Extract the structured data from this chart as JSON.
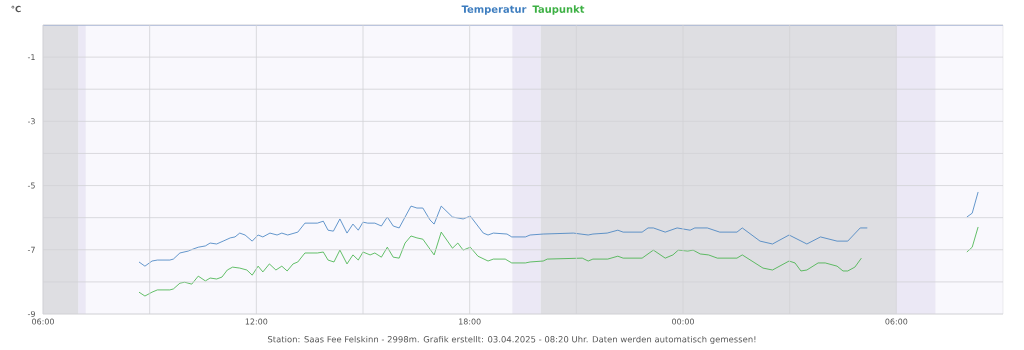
{
  "chart_data": {
    "type": "line",
    "ylabel": "°C",
    "annotations": [
      "Station: Saas Fee Felskinn - 2998m. Grafik erstellt: 03.04.2025 - 08:20 Uhr. Daten werden automatisch gemessen!"
    ],
    "xlim": [
      "2025-04-02T06:00",
      "2025-04-03T09:00"
    ],
    "ylim": [
      -9,
      0
    ],
    "xticks": [
      {
        "value": "2025-04-02T06:00",
        "label": "06:00"
      },
      {
        "value": "2025-04-02T09:00",
        "label": null
      },
      {
        "value": "2025-04-02T12:00",
        "label": "12:00"
      },
      {
        "value": "2025-04-02T15:00",
        "label": null
      },
      {
        "value": "2025-04-02T18:00",
        "label": "18:00"
      },
      {
        "value": "2025-04-02T21:00",
        "label": null
      },
      {
        "value": "2025-04-03T00:00",
        "label": "00:00"
      },
      {
        "value": "2025-04-03T03:00",
        "label": null
      },
      {
        "value": "2025-04-03T06:00",
        "label": "06:00"
      }
    ],
    "yticks": [
      -9,
      {
        "value": -8,
        "label": null
      },
      -7,
      {
        "value": -6,
        "label": null
      },
      -5,
      {
        "value": -4,
        "label": null
      },
      -3,
      {
        "value": -2,
        "label": null
      },
      -1,
      {
        "value": 0,
        "label": null
      }
    ],
    "grid": true,
    "legend": "top",
    "marker": "none",
    "line_style": "solid",
    "ref_lines": [
      {
        "axis": "y",
        "value": 0,
        "color": "#3a6fcf"
      }
    ],
    "bands": [
      {
        "axis": "x",
        "from": "2025-04-02T06:00",
        "to": "2025-04-02T07:00",
        "color": "#dedee2"
      },
      {
        "axis": "x",
        "from": "2025-04-02T07:00",
        "to": "2025-04-02T07:12",
        "color": "#ebe8f5"
      },
      {
        "axis": "x",
        "from": "2025-04-02T19:12",
        "to": "2025-04-02T20:00",
        "color": "#ebe8f5"
      },
      {
        "axis": "x",
        "from": "2025-04-02T20:00",
        "to": "2025-04-03T06:00",
        "color": "#dedee2"
      },
      {
        "axis": "x",
        "from": "2025-04-03T06:00",
        "to": "2025-04-03T07:06",
        "color": "#ebe8f5"
      }
    ],
    "series": [
      {
        "name": "Temperatur",
        "color": "#3d7dbf",
        "x": [
          "2025-04-02T08:42",
          "2025-04-02T08:52",
          "2025-04-02T09:04",
          "2025-04-02T09:13",
          "2025-04-02T09:34",
          "2025-04-02T09:40",
          "2025-04-02T09:51",
          "2025-04-02T10:05",
          "2025-04-02T10:13",
          "2025-04-02T10:22",
          "2025-04-02T10:34",
          "2025-04-02T10:42",
          "2025-04-02T10:53",
          "2025-04-02T11:04",
          "2025-04-02T11:16",
          "2025-04-02T11:24",
          "2025-04-02T11:32",
          "2025-04-02T11:41",
          "2025-04-02T11:53",
          "2025-04-02T12:03",
          "2025-04-02T12:11",
          "2025-04-02T12:23",
          "2025-04-02T12:35",
          "2025-04-02T12:43",
          "2025-04-02T12:53",
          "2025-04-02T13:10",
          "2025-04-02T13:22",
          "2025-04-02T13:43",
          "2025-04-02T13:53",
          "2025-04-02T14:01",
          "2025-04-02T14:10",
          "2025-04-02T14:21",
          "2025-04-02T14:33",
          "2025-04-02T14:43",
          "2025-04-02T14:52",
          "2025-04-02T15:00",
          "2025-04-02T15:08",
          "2025-04-02T15:20",
          "2025-04-02T15:31",
          "2025-04-02T15:41",
          "2025-04-02T15:51",
          "2025-04-02T16:01",
          "2025-04-02T16:11",
          "2025-04-02T16:21",
          "2025-04-02T16:31",
          "2025-04-02T16:41",
          "2025-04-02T16:53",
          "2025-04-02T17:00",
          "2025-04-02T17:12",
          "2025-04-02T17:31",
          "2025-04-02T17:49",
          "2025-04-02T18:01",
          "2025-04-02T18:23",
          "2025-04-02T18:31",
          "2025-04-02T18:40",
          "2025-04-02T19:03",
          "2025-04-02T19:11",
          "2025-04-02T19:34",
          "2025-04-02T19:42",
          "2025-04-02T20:04",
          "2025-04-02T20:55",
          "2025-04-02T21:20",
          "2025-04-02T21:28",
          "2025-04-02T21:52",
          "2025-04-02T22:10",
          "2025-04-02T22:19",
          "2025-04-02T22:51",
          "2025-04-02T23:01",
          "2025-04-02T23:10",
          "2025-04-02T23:30",
          "2025-04-02T23:50",
          "2025-04-03T00:12",
          "2025-04-03T00:20",
          "2025-04-03T00:41",
          "2025-04-03T01:02",
          "2025-04-03T01:31",
          "2025-04-03T01:40",
          "2025-04-03T02:10",
          "2025-04-03T02:31",
          "2025-04-03T02:59",
          "2025-04-03T03:29",
          "2025-04-03T03:52",
          "2025-04-03T04:20",
          "2025-04-03T04:38",
          "2025-04-03T04:59",
          "2025-04-03T05:11",
          "2025-04-03T06:30",
          "2025-04-03T07:59",
          "2025-04-03T08:08",
          "2025-04-03T08:18"
        ],
        "values": [
          -7.38,
          -7.51,
          -7.35,
          -7.32,
          -7.32,
          -7.29,
          -7.1,
          -7.04,
          -6.98,
          -6.92,
          -6.88,
          -6.79,
          -6.82,
          -6.73,
          -6.63,
          -6.6,
          -6.48,
          -6.54,
          -6.73,
          -6.54,
          -6.6,
          -6.48,
          -6.54,
          -6.48,
          -6.54,
          -6.45,
          -6.17,
          -6.17,
          -6.11,
          -6.39,
          -6.42,
          -6.04,
          -6.48,
          -6.2,
          -6.39,
          -6.14,
          -6.17,
          -6.17,
          -6.26,
          -5.98,
          -6.26,
          -6.32,
          -5.98,
          -5.64,
          -5.7,
          -5.7,
          -6.07,
          -6.2,
          -5.64,
          -5.98,
          -6.04,
          -5.95,
          -6.48,
          -6.54,
          -6.48,
          -6.51,
          -6.6,
          -6.6,
          -6.54,
          -6.51,
          -6.48,
          -6.54,
          -6.51,
          -6.48,
          -6.39,
          -6.45,
          -6.45,
          -6.32,
          -6.32,
          -6.45,
          -6.32,
          -6.39,
          -6.32,
          -6.32,
          -6.45,
          -6.45,
          -6.32,
          -6.73,
          -6.82,
          -6.54,
          -6.82,
          -6.6,
          -6.73,
          -6.73,
          -6.32,
          -6.32,
          null,
          -5.98,
          -5.86,
          -5.2
        ]
      },
      {
        "name": "Taupunkt",
        "color": "#3cb043",
        "x": [
          "2025-04-02T08:42",
          "2025-04-02T08:52",
          "2025-04-02T09:04",
          "2025-04-02T09:13",
          "2025-04-02T09:34",
          "2025-04-02T09:40",
          "2025-04-02T09:51",
          "2025-04-02T09:59",
          "2025-04-02T10:11",
          "2025-04-02T10:22",
          "2025-04-02T10:34",
          "2025-04-02T10:42",
          "2025-04-02T10:53",
          "2025-04-02T11:02",
          "2025-04-02T11:11",
          "2025-04-02T11:20",
          "2025-04-02T11:32",
          "2025-04-02T11:44",
          "2025-04-02T11:53",
          "2025-04-02T12:03",
          "2025-04-02T12:11",
          "2025-04-02T12:22",
          "2025-04-02T12:33",
          "2025-04-02T12:43",
          "2025-04-02T12:52",
          "2025-04-02T13:02",
          "2025-04-02T13:10",
          "2025-04-02T13:22",
          "2025-04-02T13:43",
          "2025-04-02T13:53",
          "2025-04-02T14:01",
          "2025-04-02T14:11",
          "2025-04-02T14:21",
          "2025-04-02T14:33",
          "2025-04-02T14:43",
          "2025-04-02T14:52",
          "2025-04-02T15:00",
          "2025-04-02T15:12",
          "2025-04-02T15:20",
          "2025-04-02T15:31",
          "2025-04-02T15:41",
          "2025-04-02T15:51",
          "2025-04-02T16:01",
          "2025-04-02T16:11",
          "2025-04-02T16:21",
          "2025-04-02T16:31",
          "2025-04-02T16:41",
          "2025-04-02T16:53",
          "2025-04-02T17:00",
          "2025-04-02T17:12",
          "2025-04-02T17:31",
          "2025-04-02T17:40",
          "2025-04-02T17:49",
          "2025-04-02T18:01",
          "2025-04-02T18:14",
          "2025-04-02T18:31",
          "2025-04-02T18:40",
          "2025-04-02T19:00",
          "2025-04-02T19:11",
          "2025-04-02T19:34",
          "2025-04-02T19:42",
          "2025-04-02T20:04",
          "2025-04-02T20:11",
          "2025-04-02T21:10",
          "2025-04-02T21:20",
          "2025-04-02T21:28",
          "2025-04-02T21:53",
          "2025-04-02T22:10",
          "2025-04-02T22:19",
          "2025-04-02T22:51",
          "2025-04-02T23:10",
          "2025-04-02T23:30",
          "2025-04-02T23:43",
          "2025-04-02T23:52",
          "2025-04-03T00:08",
          "2025-04-03T00:17",
          "2025-04-03T00:29",
          "2025-04-03T00:43",
          "2025-04-03T00:58",
          "2025-04-03T01:31",
          "2025-04-03T01:40",
          "2025-04-03T02:15",
          "2025-04-03T02:31",
          "2025-04-03T02:59",
          "2025-04-03T03:09",
          "2025-04-03T03:19",
          "2025-04-03T03:29",
          "2025-04-03T03:48",
          "2025-04-03T04:00",
          "2025-04-03T04:20",
          "2025-04-03T04:30",
          "2025-04-03T04:38",
          "2025-04-03T04:50",
          "2025-04-03T05:01",
          "2025-04-03T06:30",
          "2025-04-03T07:59",
          "2025-04-03T08:08",
          "2025-04-03T08:18"
        ],
        "values": [
          -8.32,
          -8.44,
          -8.32,
          -8.25,
          -8.25,
          -8.22,
          -8.04,
          -8.01,
          -8.07,
          -7.82,
          -7.97,
          -7.88,
          -7.91,
          -7.85,
          -7.63,
          -7.54,
          -7.57,
          -7.63,
          -7.79,
          -7.51,
          -7.69,
          -7.44,
          -7.63,
          -7.51,
          -7.66,
          -7.44,
          -7.38,
          -7.1,
          -7.1,
          -7.07,
          -7.32,
          -7.38,
          -7.01,
          -7.44,
          -7.16,
          -7.32,
          -7.07,
          -7.16,
          -7.1,
          -7.23,
          -6.92,
          -7.23,
          -7.26,
          -6.79,
          -6.57,
          -6.63,
          -6.67,
          -6.98,
          -7.16,
          -6.45,
          -6.95,
          -6.79,
          -7.01,
          -6.92,
          -7.2,
          -7.35,
          -7.29,
          -7.29,
          -7.41,
          -7.41,
          -7.38,
          -7.35,
          -7.29,
          -7.26,
          -7.35,
          -7.29,
          -7.29,
          -7.2,
          -7.26,
          -7.26,
          -7.01,
          -7.26,
          -7.16,
          -7.01,
          -7.04,
          -7.01,
          -7.13,
          -7.16,
          -7.26,
          -7.26,
          -7.16,
          -7.57,
          -7.63,
          -7.35,
          -7.41,
          -7.66,
          -7.63,
          -7.41,
          -7.41,
          -7.51,
          -7.66,
          -7.66,
          -7.54,
          -7.26,
          null,
          -7.07,
          -6.92,
          -6.29
        ]
      }
    ]
  }
}
